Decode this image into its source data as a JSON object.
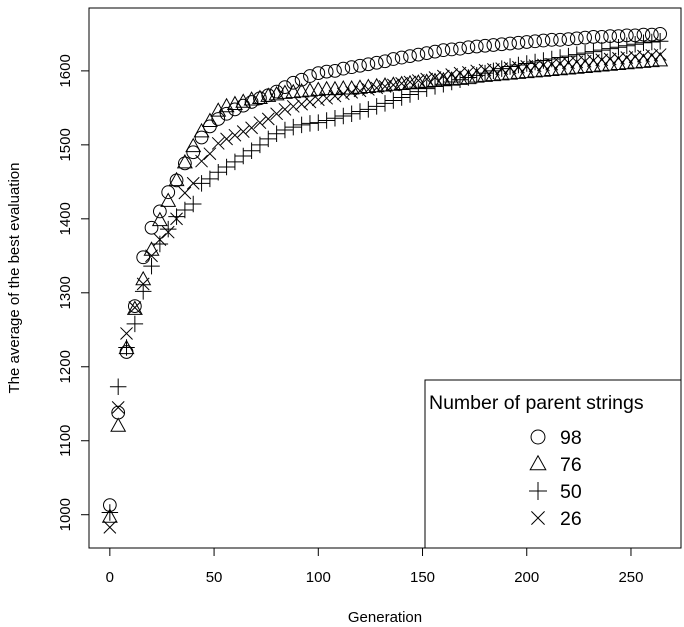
{
  "chart_data": {
    "type": "scatter",
    "title": "",
    "xlabel": "Generation",
    "ylabel": "The average of the best evaluation",
    "xlim": [
      -10,
      274
    ],
    "ylim": [
      955,
      1685
    ],
    "xticks": [
      0,
      50,
      100,
      150,
      200,
      250
    ],
    "yticks": [
      1000,
      1100,
      1200,
      1300,
      1400,
      1500,
      1600
    ],
    "grid": false,
    "legend": {
      "title": "Number of parent strings",
      "placement": "bottom-right"
    },
    "series": [
      {
        "name": "98",
        "marker": "circle",
        "x": [
          0,
          4,
          8,
          12,
          16,
          20,
          24,
          28,
          32,
          36,
          40,
          44,
          48,
          52,
          56,
          60,
          64,
          68,
          72,
          76,
          80,
          84,
          88,
          92,
          96,
          100,
          104,
          108,
          112,
          116,
          120,
          124,
          128,
          132,
          136,
          140,
          144,
          148,
          152,
          156,
          160,
          164,
          168,
          172,
          176,
          180,
          184,
          188,
          192,
          196,
          200,
          204,
          208,
          212,
          216,
          220,
          224,
          228,
          232,
          236,
          240,
          244,
          248,
          252,
          256,
          260,
          264
        ],
        "y": [
          1013,
          1138,
          1220,
          1282,
          1348,
          1388,
          1410,
          1436,
          1452,
          1475,
          1490,
          1510,
          1525,
          1535,
          1542,
          1548,
          1553,
          1558,
          1563,
          1567,
          1572,
          1578,
          1584,
          1588,
          1593,
          1597,
          1599,
          1600,
          1603,
          1605,
          1607,
          1609,
          1611,
          1613,
          1616,
          1618,
          1620,
          1622,
          1624,
          1626,
          1628,
          1629,
          1630,
          1632,
          1633,
          1634,
          1635,
          1636,
          1637,
          1638,
          1639,
          1640,
          1641,
          1642,
          1642,
          1643,
          1644,
          1645,
          1646,
          1646,
          1647,
          1647,
          1648,
          1648,
          1649,
          1649,
          1650
        ]
      },
      {
        "name": "76",
        "marker": "triangle",
        "x": [
          0,
          4,
          8,
          12,
          16,
          20,
          24,
          28,
          32,
          36,
          40,
          44,
          48,
          52,
          56,
          60,
          64,
          68,
          72,
          76,
          80,
          84,
          88,
          92,
          96,
          100,
          104,
          108,
          112,
          116,
          120,
          124,
          128,
          132,
          136,
          140,
          144,
          148,
          152,
          156,
          160,
          164,
          168,
          172,
          176,
          180,
          184,
          188,
          192,
          196,
          200,
          204,
          208,
          212,
          216,
          220,
          224,
          228,
          232,
          236,
          240,
          244,
          248,
          252,
          256,
          260,
          264
        ],
        "y": [
          997,
          1120,
          1225,
          1278,
          1318,
          1358,
          1398,
          1424,
          1452,
          1476,
          1498,
          1518,
          1532,
          1546,
          1552,
          1555,
          1558,
          1561,
          1563,
          1566,
          1568,
          1570,
          1571,
          1572,
          1573,
          1574,
          1575,
          1575,
          1576,
          1576,
          1577,
          1578,
          1579,
          1580,
          1581,
          1582,
          1583,
          1584,
          1585,
          1586,
          1587,
          1588,
          1589,
          1590,
          1592,
          1593,
          1594,
          1595,
          1596,
          1597,
          1598,
          1599,
          1600,
          1601,
          1602,
          1603,
          1604,
          1605,
          1606,
          1607,
          1608,
          1609,
          1610,
          1611,
          1612,
          1613,
          1614
        ]
      },
      {
        "name": "50",
        "marker": "plus",
        "x": [
          0,
          4,
          8,
          12,
          16,
          20,
          24,
          28,
          32,
          36,
          40,
          44,
          48,
          52,
          56,
          60,
          64,
          68,
          72,
          76,
          80,
          84,
          88,
          92,
          96,
          100,
          104,
          108,
          112,
          116,
          120,
          124,
          128,
          132,
          136,
          140,
          144,
          148,
          152,
          156,
          160,
          164,
          168,
          172,
          176,
          180,
          184,
          188,
          192,
          196,
          200,
          204,
          208,
          212,
          216,
          220,
          224,
          228,
          232,
          236,
          240,
          244,
          248,
          252,
          256,
          260,
          264
        ],
        "y": [
          1003,
          1173,
          1226,
          1258,
          1302,
          1336,
          1366,
          1386,
          1403,
          1412,
          1420,
          1448,
          1454,
          1463,
          1470,
          1477,
          1485,
          1492,
          1500,
          1508,
          1515,
          1520,
          1524,
          1527,
          1529,
          1530,
          1533,
          1536,
          1539,
          1542,
          1545,
          1548,
          1552,
          1556,
          1560,
          1564,
          1568,
          1572,
          1576,
          1579,
          1582,
          1585,
          1588,
          1591,
          1594,
          1597,
          1600,
          1603,
          1606,
          1608,
          1610,
          1612,
          1614,
          1616,
          1618,
          1620,
          1622,
          1624,
          1626,
          1628,
          1630,
          1632,
          1634,
          1636,
          1638,
          1639,
          1640
        ]
      },
      {
        "name": "26",
        "marker": "x",
        "x": [
          0,
          4,
          8,
          12,
          16,
          20,
          24,
          28,
          32,
          36,
          40,
          44,
          48,
          52,
          56,
          60,
          64,
          68,
          72,
          76,
          80,
          84,
          88,
          92,
          96,
          100,
          104,
          108,
          112,
          116,
          120,
          124,
          128,
          132,
          136,
          140,
          144,
          148,
          152,
          156,
          160,
          164,
          168,
          172,
          176,
          180,
          184,
          188,
          192,
          196,
          200,
          204,
          208,
          212,
          216,
          220,
          224,
          228,
          232,
          236,
          240,
          244,
          248,
          252,
          256,
          260,
          264
        ],
        "y": [
          983,
          1145,
          1245,
          1280,
          1312,
          1350,
          1372,
          1382,
          1400,
          1435,
          1448,
          1478,
          1488,
          1502,
          1508,
          1513,
          1518,
          1523,
          1530,
          1535,
          1542,
          1548,
          1552,
          1555,
          1558,
          1561,
          1563,
          1566,
          1569,
          1571,
          1573,
          1575,
          1577,
          1579,
          1581,
          1583,
          1585,
          1587,
          1589,
          1591,
          1593,
          1595,
          1597,
          1598,
          1600,
          1601,
          1602,
          1603,
          1604,
          1605,
          1606,
          1607,
          1608,
          1609,
          1610,
          1611,
          1612,
          1613,
          1614,
          1615,
          1616,
          1617,
          1618,
          1619,
          1620,
          1621,
          1622
        ]
      }
    ]
  }
}
